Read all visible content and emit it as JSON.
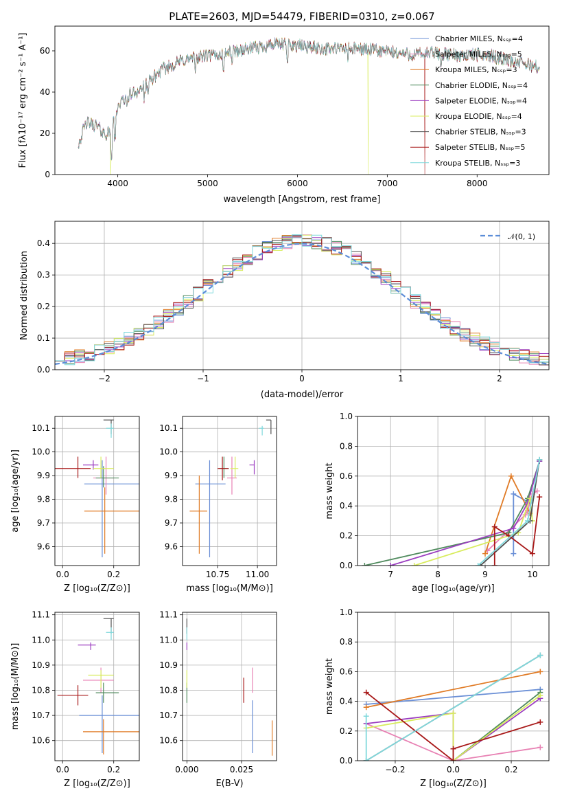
{
  "colors": {
    "chabrier_miles": "#6a8fd6",
    "salpeter_miles": "#e882b4",
    "kroupa_miles": "#e07b26",
    "chabrier_elodie": "#4f8a5d",
    "salpeter_elodie": "#9b3ec0",
    "kroupa_elodie": "#d8ec5c",
    "chabrier_stelib": "#505050",
    "salpeter_stelib": "#a81818",
    "kroupa_stelib": "#7fd8dc"
  },
  "chart_data": [
    {
      "id": "spectrum",
      "type": "line",
      "title": "PLATE=2603, MJD=54479, FIBERID=0310, z=0.067",
      "xlabel": "wavelength [Angstrom, rest frame]",
      "ylabel": "Flux [fλ10⁻¹⁷ erg cm⁻² s⁻¹ A⁻¹]",
      "xlim": [
        3300,
        8800
      ],
      "ylim": [
        0,
        72
      ],
      "xticks": [
        4000,
        5000,
        6000,
        7000,
        8000
      ],
      "yticks": [
        0,
        20,
        40,
        60
      ],
      "grid": false,
      "legend_position": "top-right",
      "legend": [
        "Chabrier MILES, N_SSP=4",
        "Salpeter MILES, N_SSP=5",
        "Kroupa MILES, N_SSP=3",
        "Chabrier ELODIE, N_SSP=4",
        "Salpeter ELODIE, N_SSP=4",
        "Kroupa ELODIE, N_SSP=4",
        "Chabrier STELIB, N_SSP=3",
        "Salpeter STELIB, N_SSP=5",
        "Kroupa STELIB, N_SSP=3"
      ],
      "continuum": {
        "x": [
          3560,
          3650,
          3750,
          3850,
          3920,
          4000,
          4100,
          4200,
          4300,
          4500,
          4700,
          4900,
          5100,
          5300,
          5500,
          5700,
          5900,
          6100,
          6300,
          6500,
          6700,
          6900,
          7100,
          7300,
          7500,
          7700,
          7900,
          8100,
          8300,
          8500,
          8700
        ],
        "y": [
          15,
          25,
          24,
          20,
          20,
          33,
          38,
          40,
          43,
          51,
          55,
          57,
          58,
          60,
          61,
          63,
          63,
          62,
          61,
          61,
          61,
          60,
          59,
          58,
          59,
          58,
          58,
          58,
          56,
          54,
          52
        ]
      },
      "dropouts": [
        {
          "x": 3920,
          "series": "kroupa_elodie"
        },
        {
          "x": 6790,
          "series": "kroupa_elodie"
        },
        {
          "x": 7420,
          "series": "salpeter_stelib"
        }
      ]
    },
    {
      "id": "residuals",
      "type": "histogram",
      "xlabel": "(data-model)/error",
      "ylabel": "Normed distribution",
      "xlim": [
        -2.5,
        2.5
      ],
      "ylim": [
        0,
        0.47
      ],
      "xticks": [
        -2,
        -1,
        0,
        1,
        2
      ],
      "yticks": [
        0.0,
        0.1,
        0.2,
        0.3,
        0.4
      ],
      "grid": true,
      "legend_position": "top-right",
      "legend": [
        "𝒩(0, 1)"
      ],
      "bin_width": 0.1,
      "bin_start": -2.5,
      "reference_curve": "normal(0,1)"
    },
    {
      "id": "age_vs_Z",
      "type": "errorbar",
      "xlabel": "Z [log₁₀(Z/Z⊙)]",
      "ylabel": "age  [log₁₀(age/yr)]",
      "xlim": [
        -0.03,
        0.3
      ],
      "ylim": [
        9.52,
        10.15
      ],
      "xticks": [
        0.0,
        0.2
      ],
      "yticks": [
        9.6,
        9.7,
        9.8,
        9.9,
        10.0,
        10.1
      ],
      "grid": true,
      "points": [
        {
          "series": "chabrier_miles",
          "x": 0.155,
          "xerr": [
            0.07,
            0.15
          ],
          "y": 9.865,
          "yerr": [
            0.31,
            0.1
          ]
        },
        {
          "series": "salpeter_miles",
          "x": 0.17,
          "xerr": [
            0.05,
            0.03
          ],
          "y": 9.89,
          "yerr": [
            0.07,
            0.09
          ]
        },
        {
          "series": "kroupa_miles",
          "x": 0.165,
          "xerr": [
            0.08,
            0.14
          ],
          "y": 9.75,
          "yerr": [
            0.18,
            0.1
          ]
        },
        {
          "series": "chabrier_elodie",
          "x": 0.16,
          "xerr": [
            0.03,
            0.06
          ],
          "y": 9.89,
          "yerr": [
            0.04,
            0.05
          ]
        },
        {
          "series": "salpeter_elodie",
          "x": 0.12,
          "xerr": [
            0.04,
            0.02
          ],
          "y": 9.945,
          "yerr": [
            0.02,
            0.02
          ]
        },
        {
          "series": "kroupa_elodie",
          "x": 0.15,
          "xerr": [
            0.03,
            0.05
          ],
          "y": 9.93,
          "yerr": [
            0.04,
            0.05
          ]
        },
        {
          "series": "chabrier_stelib",
          "x": 0.19,
          "xerr": [
            0.03,
            0.01
          ],
          "y": 10.135,
          "yerr": [
            0.06,
            0.0
          ]
        },
        {
          "series": "salpeter_stelib",
          "x": 0.06,
          "xerr": [
            0.1,
            0.05
          ],
          "y": 9.93,
          "yerr": [
            0.04,
            0.05
          ]
        },
        {
          "series": "kroupa_stelib",
          "x": 0.19,
          "xerr": [
            0.02,
            0.01
          ],
          "y": 10.1,
          "yerr": [
            0.04,
            0.02
          ]
        }
      ]
    },
    {
      "id": "age_vs_mass",
      "type": "errorbar",
      "xlabel": "mass [log₁₀(M/M⊙)]",
      "ylabel": "",
      "xlim": [
        10.53,
        11.12
      ],
      "ylim": [
        9.52,
        10.15
      ],
      "xticks": [
        10.75,
        11.0
      ],
      "yticks": [
        9.6,
        9.7,
        9.8,
        9.9,
        10.0,
        10.1
      ],
      "grid": true,
      "points": [
        {
          "series": "chabrier_miles",
          "x": 10.7,
          "xerr": [
            0.09,
            0.1
          ],
          "y": 9.865,
          "yerr": [
            0.31,
            0.1
          ]
        },
        {
          "series": "salpeter_miles",
          "x": 10.84,
          "xerr": [
            0.03,
            0.03
          ],
          "y": 9.89,
          "yerr": [
            0.07,
            0.09
          ]
        },
        {
          "series": "kroupa_miles",
          "x": 10.635,
          "xerr": [
            0.06,
            0.05
          ],
          "y": 9.75,
          "yerr": [
            0.18,
            0.15
          ]
        },
        {
          "series": "chabrier_elodie",
          "x": 10.79,
          "xerr": [
            0.03,
            0.03
          ],
          "y": 9.93,
          "yerr": [
            0.04,
            0.05
          ]
        },
        {
          "series": "salpeter_elodie",
          "x": 10.98,
          "xerr": [
            0.03,
            0.0
          ],
          "y": 9.945,
          "yerr": [
            0.04,
            0.02
          ]
        },
        {
          "series": "kroupa_elodie",
          "x": 10.86,
          "xerr": [
            0.03,
            0.02
          ],
          "y": 9.93,
          "yerr": [
            0.04,
            0.05
          ]
        },
        {
          "series": "chabrier_stelib",
          "x": 11.085,
          "xerr": [
            0.03,
            0.0
          ],
          "y": 10.135,
          "yerr": [
            0.06,
            0.0
          ]
        },
        {
          "series": "salpeter_stelib",
          "x": 10.78,
          "xerr": [
            0.03,
            0.04
          ],
          "y": 9.93,
          "yerr": [
            0.05,
            0.05
          ]
        },
        {
          "series": "kroupa_stelib",
          "x": 11.03,
          "xerr": [
            0.02,
            0.01
          ],
          "y": 10.1,
          "yerr": [
            0.03,
            0.01
          ]
        }
      ]
    },
    {
      "id": "weight_vs_age",
      "type": "line",
      "xlabel": "age  [log₁₀(age/yr)]",
      "ylabel": "mass weight",
      "xlim": [
        6.3,
        10.35
      ],
      "ylim": [
        0,
        1
      ],
      "xticks": [
        7,
        8,
        9,
        10
      ],
      "yticks": [
        0.0,
        0.2,
        0.4,
        0.6,
        0.8,
        1.0
      ],
      "grid": true,
      "series": [
        {
          "key": "chabrier_miles",
          "x": [
            9.6,
            9.6,
            9.95
          ],
          "y": [
            0.08,
            0.48,
            0.42
          ]
        },
        {
          "key": "salpeter_miles",
          "x": [
            9.05,
            9.85,
            9.9,
            10.0,
            10.1
          ],
          "y": [
            0.1,
            0.34,
            0.37,
            0.48,
            0.5
          ]
        },
        {
          "key": "kroupa_miles",
          "x": [
            9.0,
            9.55,
            9.95
          ],
          "y": [
            0.08,
            0.6,
            0.35
          ]
        },
        {
          "key": "chabrier_elodie",
          "x": [
            6.45,
            9.5,
            9.9,
            10.15
          ],
          "y": [
            0.0,
            0.22,
            0.45,
            0.7
          ]
        },
        {
          "key": "salpeter_elodie",
          "x": [
            7.0,
            9.6,
            9.9,
            10.15
          ],
          "y": [
            0.0,
            0.25,
            0.42,
            0.7
          ]
        },
        {
          "key": "kroupa_elodie",
          "x": [
            7.5,
            9.7,
            9.95,
            10.0
          ],
          "y": [
            0.0,
            0.22,
            0.45,
            0.3
          ]
        },
        {
          "key": "chabrier_stelib",
          "x": [
            8.9,
            9.95,
            10.15
          ],
          "y": [
            0.0,
            0.3,
            0.71
          ]
        },
        {
          "key": "salpeter_stelib",
          "x": [
            9.2,
            9.2,
            9.5,
            10.0,
            10.15
          ],
          "y": [
            0.0,
            0.26,
            0.2,
            0.08,
            0.46
          ]
        },
        {
          "key": "kroupa_stelib",
          "x": [
            8.85,
            9.9,
            10.15
          ],
          "y": [
            0.0,
            0.3,
            0.71
          ]
        }
      ]
    },
    {
      "id": "mass_vs_Z",
      "type": "errorbar",
      "xlabel": "Z [log₁₀(Z/Z⊙)]",
      "ylabel": "mass [log₁₀(M/M⊙)]",
      "xlim": [
        -0.03,
        0.3
      ],
      "ylim": [
        10.52,
        11.11
      ],
      "xticks": [
        0.0,
        0.2
      ],
      "yticks": [
        10.6,
        10.7,
        10.8,
        10.9,
        11.0,
        11.1
      ],
      "grid": true,
      "points": [
        {
          "series": "chabrier_miles",
          "x": 0.155,
          "xerr": [
            0.09,
            0.15
          ],
          "y": 10.7,
          "yerr": [
            0.15,
            0.08
          ]
        },
        {
          "series": "salpeter_miles",
          "x": 0.15,
          "xerr": [
            0.07,
            0.05
          ],
          "y": 10.84,
          "yerr": [
            0.05,
            0.05
          ]
        },
        {
          "series": "kroupa_miles",
          "x": 0.16,
          "xerr": [
            0.08,
            0.14
          ],
          "y": 10.635,
          "yerr": [
            0.09,
            0.05
          ]
        },
        {
          "series": "chabrier_elodie",
          "x": 0.16,
          "xerr": [
            0.03,
            0.06
          ],
          "y": 10.79,
          "yerr": [
            0.04,
            0.04
          ]
        },
        {
          "series": "salpeter_elodie",
          "x": 0.11,
          "xerr": [
            0.05,
            0.02
          ],
          "y": 10.98,
          "yerr": [
            0.02,
            0.01
          ]
        },
        {
          "series": "kroupa_elodie",
          "x": 0.15,
          "xerr": [
            0.05,
            0.05
          ],
          "y": 10.86,
          "yerr": [
            0.05,
            0.02
          ]
        },
        {
          "series": "chabrier_stelib",
          "x": 0.19,
          "xerr": [
            0.03,
            0.01
          ],
          "y": 11.085,
          "yerr": [
            0.06,
            0.0
          ]
        },
        {
          "series": "salpeter_stelib",
          "x": 0.06,
          "xerr": [
            0.08,
            0.04
          ],
          "y": 10.78,
          "yerr": [
            0.04,
            0.04
          ]
        },
        {
          "series": "kroupa_stelib",
          "x": 0.19,
          "xerr": [
            0.02,
            0.01
          ],
          "y": 11.03,
          "yerr": [
            0.03,
            0.02
          ]
        }
      ]
    },
    {
      "id": "mass_vs_ebv",
      "type": "errorbar",
      "xlabel": "E(B-V)",
      "ylabel": "",
      "xlim": [
        -0.002,
        0.041
      ],
      "ylim": [
        10.52,
        11.11
      ],
      "xticks": [
        0.0,
        0.025
      ],
      "xticklabels": [
        "0.000",
        "0.025"
      ],
      "yticks": [
        10.6,
        10.7,
        10.8,
        10.9,
        11.0,
        11.1
      ],
      "grid": true,
      "points": [
        {
          "series": "chabrier_miles",
          "x": 0.03,
          "y": 10.68,
          "yerr": [
            0.13,
            0.08
          ]
        },
        {
          "series": "salpeter_miles",
          "x": 0.03,
          "y": 10.84,
          "yerr": [
            0.05,
            0.05
          ]
        },
        {
          "series": "kroupa_miles",
          "x": 0.039,
          "y": 10.61,
          "yerr": [
            0.07,
            0.07
          ]
        },
        {
          "series": "chabrier_elodie",
          "x": 0.0,
          "y": 10.79,
          "yerr": [
            0.04,
            0.04
          ]
        },
        {
          "series": "salpeter_elodie",
          "x": 0.0,
          "y": 10.98,
          "yerr": [
            0.02,
            0.01
          ]
        },
        {
          "series": "kroupa_elodie",
          "x": 0.0,
          "y": 10.86,
          "yerr": [
            0.05,
            0.02
          ]
        },
        {
          "series": "chabrier_stelib",
          "x": 0.0,
          "y": 11.085,
          "yerr": [
            0.06,
            0.0
          ]
        },
        {
          "series": "salpeter_stelib",
          "x": 0.026,
          "y": 10.8,
          "yerr": [
            0.05,
            0.05
          ]
        },
        {
          "series": "kroupa_stelib",
          "x": 0.0,
          "y": 11.03,
          "yerr": [
            0.03,
            0.02
          ]
        }
      ]
    },
    {
      "id": "weight_vs_Z",
      "type": "line",
      "xlabel": "Z [log₁₀(Z/Z⊙)]",
      "ylabel": "mass weight",
      "xlim": [
        -0.33,
        0.33
      ],
      "ylim": [
        0,
        1
      ],
      "xticks": [
        -0.2,
        0.0,
        0.2
      ],
      "xticklabels": [
        "−0.2",
        "0.0",
        "0.2"
      ],
      "yticks": [
        0.0,
        0.2,
        0.4,
        0.6,
        0.8,
        1.0
      ],
      "grid": true,
      "series": [
        {
          "key": "chabrier_miles",
          "x": [
            -0.3,
            0.3
          ],
          "y": [
            0.38,
            0.48
          ]
        },
        {
          "key": "salpeter_miles",
          "x": [
            -0.3,
            0.0,
            0.3
          ],
          "y": [
            0.25,
            0.0,
            0.09
          ]
        },
        {
          "key": "kroupa_miles",
          "x": [
            -0.3,
            0.3
          ],
          "y": [
            0.36,
            0.6
          ]
        },
        {
          "key": "chabrier_elodie",
          "x": [
            0.0,
            0.3
          ],
          "y": [
            0.0,
            0.46
          ]
        },
        {
          "key": "salpeter_elodie",
          "x": [
            -0.3,
            0.0,
            0.0,
            0.3
          ],
          "y": [
            0.25,
            0.32,
            0.0,
            0.42
          ]
        },
        {
          "key": "kroupa_elodie",
          "x": [
            -0.3,
            0.0,
            0.0,
            0.3
          ],
          "y": [
            0.22,
            0.32,
            0.0,
            0.44
          ]
        },
        {
          "key": "chabrier_stelib",
          "x": [
            -0.3,
            0.3
          ],
          "y": [
            0.0,
            0.71
          ]
        },
        {
          "key": "salpeter_stelib",
          "x": [
            -0.3,
            0.0,
            0.0,
            0.3
          ],
          "y": [
            0.46,
            0.0,
            0.08,
            0.26
          ]
        },
        {
          "key": "kroupa_stelib",
          "x": [
            -0.3,
            -0.3,
            0.3
          ],
          "y": [
            0.3,
            0.0,
            0.71
          ]
        }
      ]
    }
  ]
}
